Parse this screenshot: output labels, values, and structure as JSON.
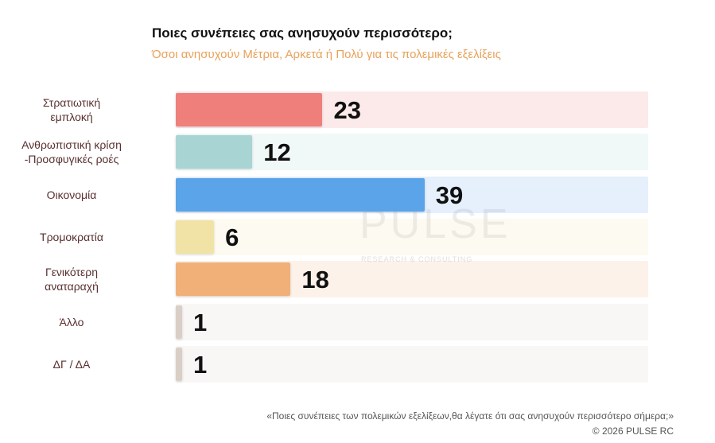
{
  "chart_data": {
    "type": "bar",
    "orientation": "horizontal",
    "title": "Ποιες συνέπειες σας ανησυχούν περισσότερο;",
    "subtitle": "Όσοι ανησυχούν Μέτρια, Αρκετά ή Πολύ για τις πολεμικές εξελίξεις",
    "categories": [
      "Στρατιωτική\nεμπλοκή",
      "Ανθρωπιστική κρίση\n-Προσφυγικές ροές",
      "Οικονομία",
      "Τρομοκρατία",
      "Γενικότερη\nαναταραχή",
      "Άλλο",
      "ΔΓ / ΔΑ"
    ],
    "values": [
      23,
      12,
      39,
      6,
      18,
      1,
      1
    ],
    "colors": [
      "#ef7f7b",
      "#a8d5d4",
      "#5ba4ea",
      "#f1e3a6",
      "#f2b079",
      "#d9cfc6",
      "#d9cfc6"
    ],
    "watermark": "PULSE",
    "watermark_tagline": "RESEARCH & CONSULTING",
    "footnote": "«Ποιες συνέπειες των πολεμικών εξελίξεων,θα λέγατε ότι σας ανησυχούν περισσότερο σήμερα;»",
    "copyright": "© 2026 PULSE RC"
  }
}
